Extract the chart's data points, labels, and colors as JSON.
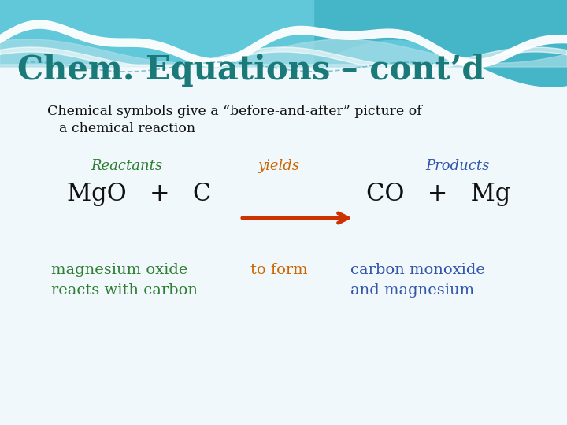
{
  "title": "Chem. Equations – cont’d",
  "title_color": "#1a7a7a",
  "subtitle_line1": "Chemical symbols give a “before-and-after” picture of",
  "subtitle_line2": "a chemical reaction",
  "subtitle_color": "#111111",
  "reactants_label": "Reactants",
  "reactants_color": "#2e7d32",
  "yields_label": "yields",
  "yields_color": "#cc6600",
  "products_label": "Products",
  "products_color": "#3355aa",
  "equation_left": "MgO   +   C",
  "equation_right": "CO   +   Mg",
  "equation_color": "#111111",
  "arrow_color": "#cc3300",
  "bottom_left_line1": "magnesium oxide",
  "bottom_left_line2": "reacts with carbon",
  "bottom_left_color": "#2e7d32",
  "bottom_mid": "to form",
  "bottom_mid_color": "#cc6600",
  "bottom_right_line1": "carbon monoxide",
  "bottom_right_line2": "and magnesium",
  "bottom_right_color": "#3355aa",
  "figsize": [
    7.2,
    5.4
  ],
  "dpi": 100
}
